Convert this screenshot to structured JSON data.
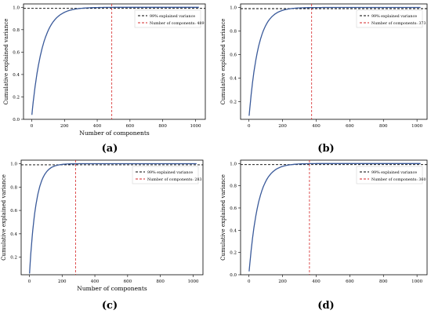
{
  "figure": {
    "panels": [
      "(a)",
      "(b)",
      "(c)",
      "(d)"
    ]
  },
  "chart_data": [
    {
      "type": "line",
      "panel_label": "(a)",
      "xlabel": "Number of components",
      "ylabel": "Cumulative explained variance",
      "xlim": [
        -50,
        1060
      ],
      "ylim": [
        0,
        1.03
      ],
      "xticks": [
        0,
        200,
        400,
        600,
        800,
        1000
      ],
      "yticks": [
        0.0,
        0.2,
        0.4,
        0.6,
        0.8,
        1.0
      ],
      "ytick_labels": [
        "0.0",
        "0.2",
        "0.4",
        "0.6",
        "0.8",
        "1.0"
      ],
      "threshold": 0.99,
      "components": 489,
      "curve": {
        "x_start": 1,
        "y_start": 0.04,
        "tau": 65,
        "color": "#3a5a9a"
      },
      "threshold_color": "#000000",
      "vline_color": "#d62728",
      "legend": [
        "99% explained variance",
        "Number of components: 489"
      ],
      "legend_position": "top-right"
    },
    {
      "type": "line",
      "panel_label": "(b)",
      "xlabel": "",
      "ylabel": "Cumulative explained variance",
      "xlim": [
        -50,
        1060
      ],
      "ylim": [
        0.05,
        1.03
      ],
      "xticks": [
        0,
        200,
        400,
        600,
        800,
        1000
      ],
      "yticks": [
        0.2,
        0.4,
        0.6,
        0.8,
        1.0
      ],
      "ytick_labels": [
        "0.2",
        "0.4",
        "0.6",
        "0.8",
        "1.0"
      ],
      "threshold": 0.99,
      "components": 373,
      "curve": {
        "x_start": 1,
        "y_start": 0.08,
        "tau": 55,
        "color": "#3a5a9a"
      },
      "threshold_color": "#000000",
      "vline_color": "#d62728",
      "legend": [
        "99% explained variance",
        "Number of components: 373"
      ],
      "legend_position": "top-right"
    },
    {
      "type": "line",
      "panel_label": "(c)",
      "xlabel": "Number of components",
      "ylabel": "Cumulative explained variance",
      "xlim": [
        -50,
        1060
      ],
      "ylim": [
        0.05,
        1.03
      ],
      "xticks": [
        0,
        200,
        400,
        600,
        800,
        1000
      ],
      "yticks": [
        0.2,
        0.4,
        0.6,
        0.8,
        1.0
      ],
      "ytick_labels": [
        "0.2",
        "0.4",
        "0.6",
        "0.8",
        "1.0"
      ],
      "threshold": 0.99,
      "components": 283,
      "curve": {
        "x_start": 1,
        "y_start": 0.06,
        "tau": 40,
        "color": "#3a5a9a"
      },
      "threshold_color": "#000000",
      "vline_color": "#d62728",
      "legend": [
        "99% explained variance",
        "Number of components: 283"
      ],
      "legend_position": "top-right"
    },
    {
      "type": "line",
      "panel_label": "(d)",
      "xlabel": "",
      "ylabel": "Cumulative explained variance",
      "xlim": [
        -50,
        1060
      ],
      "ylim": [
        0,
        1.03
      ],
      "xticks": [
        0,
        200,
        400,
        600,
        800,
        1000
      ],
      "yticks": [
        0.0,
        0.2,
        0.4,
        0.6,
        0.8,
        1.0
      ],
      "ytick_labels": [
        "0.0",
        "0.2",
        "0.4",
        "0.6",
        "0.8",
        "1.0"
      ],
      "threshold": 0.99,
      "components": 360,
      "curve": {
        "x_start": 1,
        "y_start": 0.03,
        "tau": 55,
        "color": "#3a5a9a"
      },
      "threshold_color": "#000000",
      "vline_color": "#d62728",
      "legend": [
        "99% explained variance",
        "Number of components: 360"
      ],
      "legend_position": "top-right"
    }
  ]
}
